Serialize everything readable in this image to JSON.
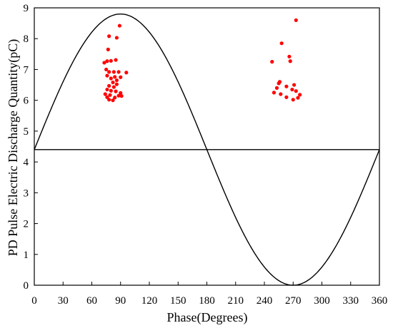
{
  "chart_data": {
    "type": "scatter",
    "title": "",
    "xlabel": "Phase(Degrees)",
    "ylabel": "PD Pulse Electric Discharge Quantity(pC)",
    "xlim": [
      0,
      360
    ],
    "ylim": [
      0,
      9
    ],
    "x_ticks": [
      0,
      30,
      60,
      90,
      120,
      150,
      180,
      210,
      240,
      270,
      300,
      330,
      360
    ],
    "y_ticks": [
      0,
      1,
      2,
      3,
      4,
      5,
      6,
      7,
      8,
      9
    ],
    "grid": false,
    "reference_sine": {
      "offset": 4.4,
      "amplitude": 4.4,
      "period_degrees": 360,
      "color": "#000000"
    },
    "horizontal_line": {
      "y": 4.4,
      "color": "#000000"
    },
    "series": [
      {
        "color": "#ff0000",
        "points": [
          [
            89,
            8.42
          ],
          [
            78,
            8.08
          ],
          [
            86,
            8.03
          ],
          [
            77,
            7.65
          ],
          [
            73,
            7.22
          ],
          [
            76,
            7.27
          ],
          [
            80,
            7.28
          ],
          [
            85,
            7.31
          ],
          [
            75,
            7.0
          ],
          [
            78,
            6.92
          ],
          [
            83,
            6.92
          ],
          [
            88,
            6.92
          ],
          [
            96,
            6.9
          ],
          [
            76,
            6.8
          ],
          [
            84,
            6.76
          ],
          [
            90,
            6.75
          ],
          [
            80,
            6.71
          ],
          [
            86,
            6.65
          ],
          [
            82,
            6.58
          ],
          [
            86,
            6.52
          ],
          [
            78,
            6.47
          ],
          [
            83,
            6.43
          ],
          [
            76,
            6.35
          ],
          [
            80,
            6.31
          ],
          [
            85,
            6.29
          ],
          [
            90,
            6.24
          ],
          [
            74,
            6.2
          ],
          [
            79,
            6.17
          ],
          [
            88,
            6.15
          ],
          [
            91,
            6.14
          ],
          [
            76,
            6.1
          ],
          [
            84,
            6.09
          ],
          [
            78,
            6.02
          ],
          [
            82,
            6.0
          ],
          [
            273,
            8.6
          ],
          [
            258,
            7.85
          ],
          [
            266,
            7.42
          ],
          [
            267,
            7.27
          ],
          [
            248,
            7.25
          ],
          [
            256,
            6.6
          ],
          [
            255,
            6.55
          ],
          [
            271,
            6.5
          ],
          [
            263,
            6.45
          ],
          [
            253,
            6.4
          ],
          [
            269,
            6.35
          ],
          [
            273,
            6.3
          ],
          [
            250,
            6.25
          ],
          [
            257,
            6.2
          ],
          [
            277,
            6.18
          ],
          [
            263,
            6.1
          ],
          [
            275,
            6.08
          ],
          [
            270,
            6.02
          ]
        ]
      }
    ]
  }
}
